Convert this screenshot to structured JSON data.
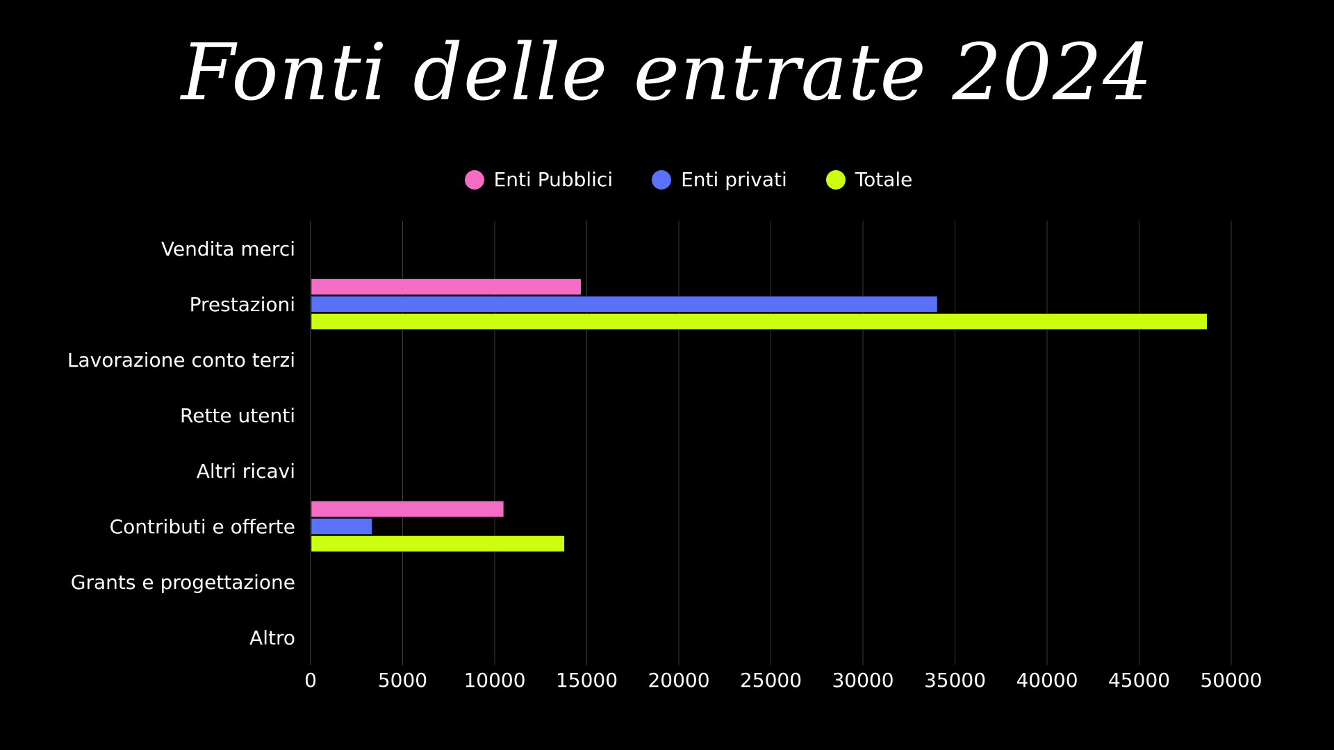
{
  "chart_data": {
    "type": "bar",
    "orientation": "horizontal",
    "title": "Fonti delle entrate 2024",
    "categories": [
      "Vendita merci",
      "Prestazioni",
      "Lavorazione conto terzi",
      "Rette utenti",
      "Altri ricavi",
      "Contributi e offerte",
      "Grants e progettazione",
      "Altro"
    ],
    "series": [
      {
        "name": "Enti Pubblici",
        "color": "#f56cc4",
        "values": [
          0,
          14650,
          0,
          0,
          0,
          10450,
          0,
          0
        ]
      },
      {
        "name": "Enti privati",
        "color": "#5a72f7",
        "values": [
          0,
          34000,
          0,
          0,
          0,
          3300,
          0,
          0
        ]
      },
      {
        "name": "Totale",
        "color": "#cbff0d",
        "values": [
          0,
          48650,
          0,
          0,
          0,
          13750,
          0,
          0
        ]
      }
    ],
    "xlim": [
      0,
      50000
    ],
    "xticks": [
      "0",
      "5000",
      "10000",
      "15000",
      "20000",
      "25000",
      "30000",
      "35000",
      "40000",
      "45000",
      "50000"
    ],
    "xlabel": "",
    "ylabel": "",
    "grid": "vertical",
    "legend_position": "top-center"
  },
  "colors": {
    "background": "#000000",
    "text": "#ffffff",
    "grid": "#3a3a3a"
  }
}
